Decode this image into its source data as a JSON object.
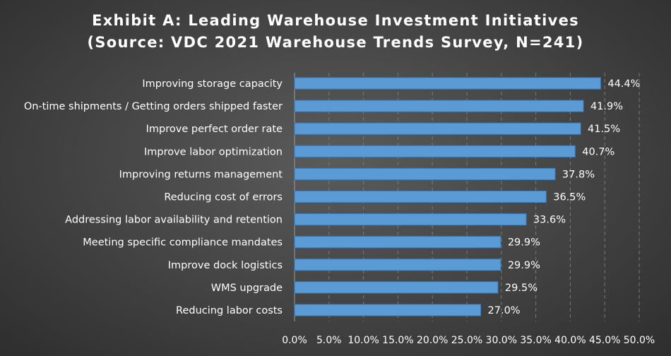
{
  "chart_data": {
    "type": "bar",
    "orientation": "horizontal",
    "title": "Exhibit A: Leading Warehouse Investment Initiatives",
    "subtitle": "(Source: VDC 2021 Warehouse Trends Survey, N=241)",
    "categories": [
      "Improving storage capacity",
      "On-time shipments / Getting orders shipped faster",
      "Improve perfect order rate",
      "Improve labor optimization",
      "Improving returns management",
      "Reducing cost of errors",
      "Addressing labor availability and retention",
      "Meeting specific compliance mandates",
      "Improve dock logistics",
      "WMS upgrade",
      "Reducing labor costs"
    ],
    "values": [
      44.4,
      41.9,
      41.5,
      40.7,
      37.8,
      36.5,
      33.6,
      29.9,
      29.9,
      29.5,
      27.0
    ],
    "value_labels": [
      "44.4%",
      "41.9%",
      "41.5%",
      "40.7%",
      "37.8%",
      "36.5%",
      "33.6%",
      "29.9%",
      "29.9%",
      "29.5%",
      "27.0%"
    ],
    "xticks": [
      "0.0%",
      "5.0%",
      "10.0%",
      "15.0%",
      "20.0%",
      "25.0%",
      "30.0%",
      "35.0%",
      "40.0%",
      "45.0%",
      "50.0%"
    ],
    "xlim": [
      0,
      50
    ],
    "grid": "vertical dashed",
    "legend": "none",
    "colors": {
      "bar": "#5b9bd5",
      "bar_edge": "#3f7fbf",
      "grid": "#7a7a7a",
      "text": "#ffffff"
    }
  }
}
